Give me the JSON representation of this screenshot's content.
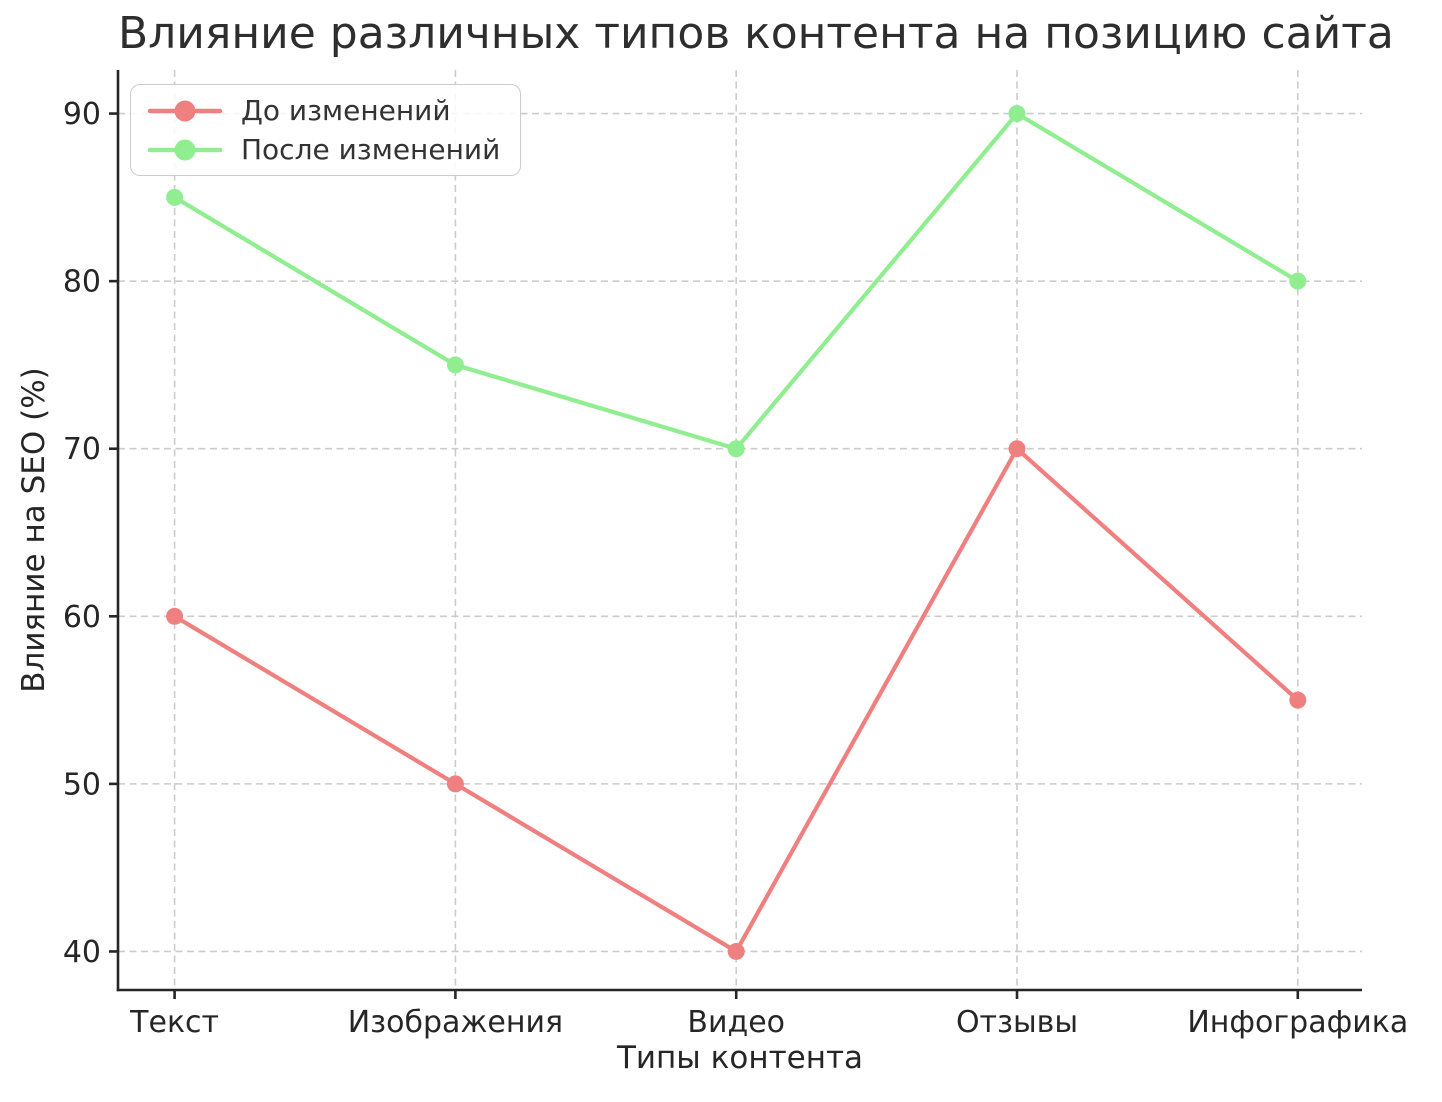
{
  "chart_data": {
    "type": "line",
    "title": "Влияние различных типов контента на позицию сайта",
    "xlabel": "Типы контента",
    "ylabel": "Влияние на SEO (%)",
    "categories": [
      "Текст",
      "Изображения",
      "Видео",
      "Отзывы",
      "Инфографика"
    ],
    "series": [
      {
        "name": "До изменений",
        "color": "#F08080",
        "values": [
          60,
          50,
          40,
          70,
          55
        ]
      },
      {
        "name": "После изменений",
        "color": "#90EE90",
        "values": [
          85,
          75,
          70,
          90,
          80
        ]
      }
    ],
    "yticks": [
      40,
      50,
      60,
      70,
      80,
      90
    ],
    "ylim": [
      37.7,
      92.6
    ],
    "grid": true,
    "grid_style": "dashed",
    "legend_position": "upper left"
  },
  "colors": {
    "background": "#ffffff",
    "grid": "#cccccc",
    "axis": "#262626",
    "text": "#2e2e2e",
    "legend_border": "#cccccc"
  }
}
